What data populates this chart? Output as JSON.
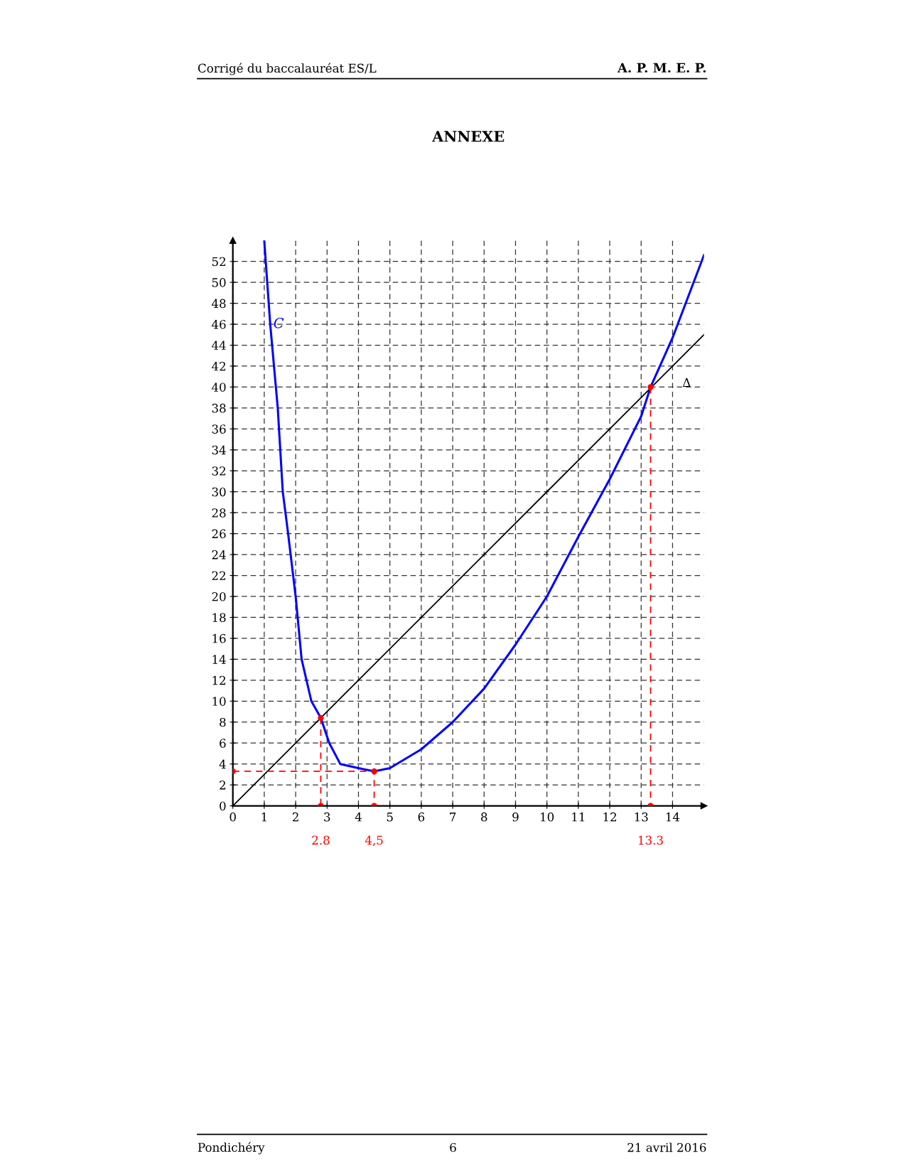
{
  "chart_data": {
    "type": "line",
    "title": "ANNEXE",
    "xlim": [
      0,
      15
    ],
    "ylim": [
      0,
      54
    ],
    "xticks": [
      0,
      1,
      2,
      3,
      4,
      5,
      6,
      7,
      8,
      9,
      10,
      11,
      12,
      13,
      14
    ],
    "yticks": [
      0,
      2,
      4,
      6,
      8,
      10,
      12,
      14,
      16,
      18,
      20,
      22,
      24,
      26,
      28,
      30,
      32,
      34,
      36,
      38,
      40,
      42,
      44,
      46,
      48,
      50,
      52
    ],
    "grid": true,
    "legend": false,
    "series": [
      {
        "name": "C",
        "color": "#0000ff",
        "x": [
          1.0,
          1.19,
          1.43,
          1.59,
          1.76,
          2.0,
          2.19,
          2.5,
          2.8,
          3.07,
          3.42,
          4.0,
          4.5,
          5.0,
          6.0,
          7.0,
          8.0,
          9.0,
          10.0,
          11.0,
          12.0,
          13.0,
          13.3,
          14.0,
          15.0
        ],
        "values": [
          54,
          46,
          38,
          30,
          26,
          20,
          14,
          10,
          8.4,
          6,
          4,
          3.6,
          3.3,
          3.6,
          5.4,
          8.0,
          11.2,
          15.4,
          20,
          25.7,
          31.2,
          37.2,
          40,
          44.7,
          52.6
        ],
        "line_style": "solid"
      },
      {
        "name": "Δ",
        "color": "#000000",
        "x": [
          0,
          15
        ],
        "values": [
          0,
          45
        ],
        "line_style": "solid"
      },
      {
        "color": "#ff0000",
        "x": [
          2.8,
          2.8
        ],
        "values": [
          8.4,
          0
        ],
        "line_style": "dashed",
        "marker": "circle"
      },
      {
        "color": "#ff0000",
        "x": [
          0,
          4.5,
          4.5
        ],
        "values": [
          3.3,
          3.3,
          0
        ],
        "line_style": "dashed",
        "marker": "circle"
      },
      {
        "color": "#ff0000",
        "x": [
          13.3,
          13.3
        ],
        "values": [
          40,
          0
        ],
        "line_style": "dashed",
        "marker": "circle"
      }
    ],
    "annotations": [
      "Corrigé du baccalauréat ES/L",
      "A. P. M. E. P.",
      {
        "text": "2.8",
        "x": 2.8,
        "y": 0
      },
      {
        "text": "4,5",
        "x": 4.5,
        "y": 0
      },
      {
        "text": "13.3",
        "x": 13.3,
        "y": 0
      },
      "Pondichéry",
      "6",
      "21 avril 2016"
    ]
  }
}
